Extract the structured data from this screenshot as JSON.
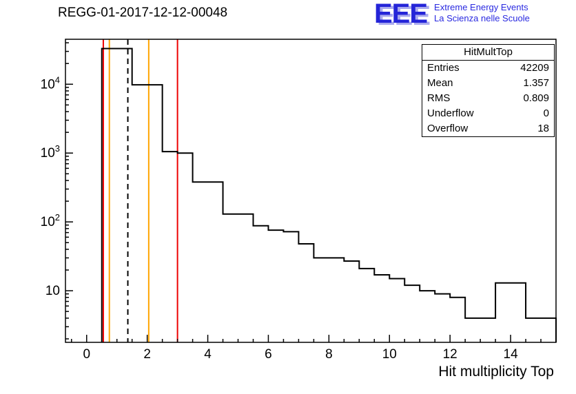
{
  "title": "REGG-01-2017-12-12-00048",
  "logo": {
    "letters": "EEE",
    "line1": "Extreme Energy Events",
    "line2": "La Scienza nelle Scuole",
    "color": "#2424d8",
    "shadow_color": "#a9a9ee"
  },
  "stats": {
    "title": "HitMultTop",
    "rows": [
      {
        "label": "Entries",
        "value": "42209"
      },
      {
        "label": "Mean",
        "value": "1.357"
      },
      {
        "label": "RMS",
        "value": "0.809"
      },
      {
        "label": "Underflow",
        "value": "0"
      },
      {
        "label": "Overflow",
        "value": "18"
      }
    ]
  },
  "chart_data": {
    "type": "bar",
    "subtype": "step-histogram",
    "title": "REGG-01-2017-12-12-00048",
    "xlabel": "Hit multiplicity Top",
    "ylabel": "",
    "x_scale": "linear",
    "y_scale": "log",
    "xlim": [
      -0.7,
      15.5
    ],
    "ylim": [
      1.78,
      45000
    ],
    "x_ticks": [
      0,
      2,
      4,
      6,
      8,
      10,
      12,
      14
    ],
    "x_minor_step": 0.5,
    "y_ticks": [
      {
        "value": 10,
        "base": "10",
        "exp": ""
      },
      {
        "value": 100,
        "base": "10",
        "exp": "2"
      },
      {
        "value": 1000,
        "base": "10",
        "exp": "3"
      },
      {
        "value": 10000,
        "base": "10",
        "exp": "4"
      }
    ],
    "grid": false,
    "legend": "none",
    "line_color": "#000000",
    "bin_edges": [
      0.5,
      1,
      1.5,
      2,
      2.5,
      3,
      3.5,
      4,
      4.5,
      5,
      5.5,
      6,
      6.5,
      7,
      7.5,
      8,
      8.5,
      9,
      9.5,
      10,
      10.5,
      11,
      11.5,
      12,
      12.5,
      13,
      13.5,
      14,
      14.5,
      15,
      15.5
    ],
    "counts": [
      33000,
      33000,
      9800,
      9800,
      1050,
      1000,
      380,
      380,
      130,
      130,
      88,
      76,
      72,
      48,
      30,
      30,
      27,
      21,
      17,
      15,
      12,
      10,
      9,
      8,
      4,
      4,
      13,
      13,
      4,
      4
    ],
    "marker_lines": [
      {
        "x": 0.55,
        "color": "#ee0000",
        "dash": false
      },
      {
        "x": 0.75,
        "color": "#ffa500",
        "dash": false
      },
      {
        "x": 1.36,
        "color": "#000000",
        "dash": true
      },
      {
        "x": 2.05,
        "color": "#ffa500",
        "dash": false
      },
      {
        "x": 3.0,
        "color": "#ee0000",
        "dash": false
      }
    ]
  }
}
